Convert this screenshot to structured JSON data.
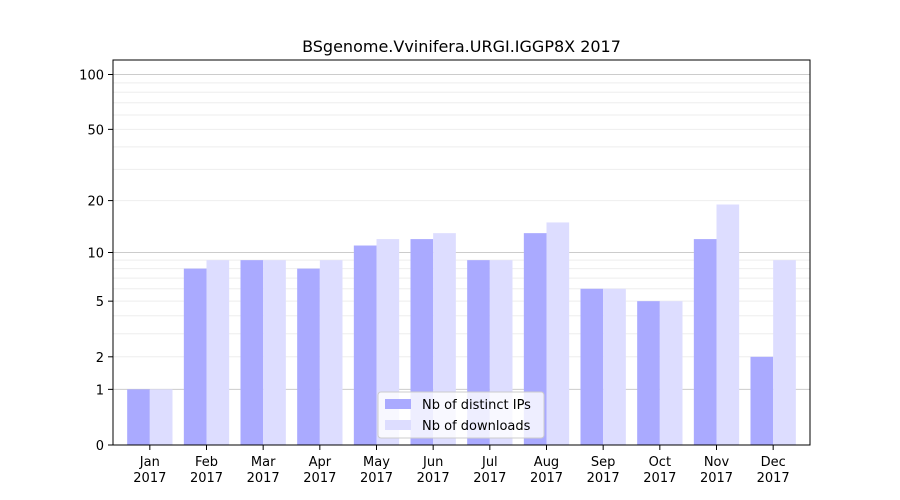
{
  "chart_data": {
    "type": "bar",
    "title": "BSgenome.Vvinifera.URGI.IGGP8X 2017",
    "xlabel": "",
    "ylabel": "",
    "y_scale": "log(1+y)",
    "ylim": [
      0,
      120
    ],
    "yticks": [
      0,
      1,
      2,
      5,
      10,
      20,
      50,
      100
    ],
    "categories": [
      [
        "Jan",
        "2017"
      ],
      [
        "Feb",
        "2017"
      ],
      [
        "Mar",
        "2017"
      ],
      [
        "Apr",
        "2017"
      ],
      [
        "May",
        "2017"
      ],
      [
        "Jun",
        "2017"
      ],
      [
        "Jul",
        "2017"
      ],
      [
        "Aug",
        "2017"
      ],
      [
        "Sep",
        "2017"
      ],
      [
        "Oct",
        "2017"
      ],
      [
        "Nov",
        "2017"
      ],
      [
        "Dec",
        "2017"
      ]
    ],
    "series": [
      {
        "name": "Nb of distinct IPs",
        "color": "#aaaaff",
        "values": [
          1,
          8,
          9,
          8,
          11,
          12,
          9,
          13,
          6,
          5,
          12,
          2
        ]
      },
      {
        "name": "Nb of downloads",
        "color": "#ddddff",
        "values": [
          1,
          9,
          9,
          9,
          12,
          13,
          9,
          15,
          6,
          5,
          19,
          9
        ]
      }
    ],
    "legend": "bottom-center",
    "grid": true
  }
}
